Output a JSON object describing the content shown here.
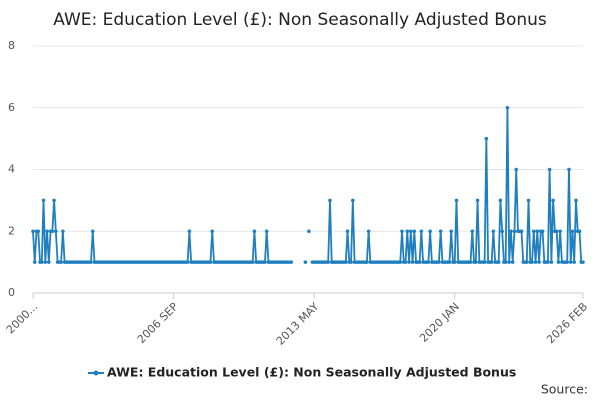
{
  "chart_data": {
    "type": "line",
    "title": "AWE: Education Level (£): Non Seasonally Adjusted Bonus",
    "source": "Source:",
    "legend": "bottom",
    "grid": true,
    "ylim": [
      0,
      8
    ],
    "yticks": [
      0,
      2,
      4,
      6,
      8
    ],
    "categories": [
      "2000...",
      null,
      null,
      null,
      null,
      null,
      null,
      null,
      null,
      null,
      null,
      null,
      null,
      null,
      null,
      null,
      null,
      null,
      null,
      null,
      null,
      null,
      null,
      null,
      null,
      null,
      null,
      null,
      null,
      null,
      null,
      null,
      null,
      null,
      null,
      null,
      null,
      null,
      null,
      null,
      null,
      null,
      null,
      null,
      null,
      null,
      null,
      null,
      null,
      null,
      null,
      null,
      null,
      null,
      null,
      null,
      null,
      null,
      null,
      null,
      null,
      null,
      null,
      null,
      null,
      null,
      null,
      null,
      null,
      null,
      null,
      null,
      null,
      null,
      null,
      null,
      null,
      null,
      null,
      null,
      "2006 SEP",
      null,
      null,
      null,
      null,
      null,
      null,
      null,
      null,
      null,
      null,
      null,
      null,
      null,
      null,
      null,
      null,
      null,
      null,
      null,
      null,
      null,
      null,
      null,
      null,
      null,
      null,
      null,
      null,
      null,
      null,
      null,
      null,
      null,
      null,
      null,
      null,
      null,
      null,
      null,
      null,
      null,
      null,
      null,
      null,
      null,
      null,
      null,
      null,
      null,
      null,
      null,
      null,
      null,
      null,
      null,
      null,
      null,
      null,
      null,
      null,
      null,
      null,
      null,
      null,
      null,
      null,
      null,
      null,
      null,
      null,
      null,
      null,
      null,
      null,
      null,
      null,
      null,
      null,
      null,
      "2013 MAY",
      null,
      null,
      null,
      null,
      null,
      null,
      null,
      null,
      null,
      null,
      null,
      null,
      null,
      null,
      null,
      null,
      null,
      null,
      null,
      null,
      null,
      null,
      null,
      null,
      null,
      null,
      null,
      null,
      null,
      null,
      null,
      null,
      null,
      null,
      null,
      null,
      null,
      null,
      null,
      null,
      null,
      null,
      null,
      null,
      null,
      null,
      null,
      null,
      null,
      null,
      null,
      null,
      null,
      null,
      null,
      null,
      null,
      null,
      null,
      null,
      null,
      null,
      null,
      null,
      null,
      null,
      null,
      null,
      null,
      null,
      null,
      null,
      null,
      null,
      null,
      null,
      null,
      null,
      null,
      "2020 JAN",
      null,
      null,
      null,
      null,
      null,
      null,
      null,
      null,
      null,
      null,
      null,
      null,
      null,
      null,
      null,
      null,
      null,
      null,
      null,
      null,
      null,
      null,
      null,
      null,
      null,
      null,
      null,
      null,
      null,
      null,
      null,
      null,
      null,
      null,
      null,
      null,
      null,
      null,
      null,
      null,
      null,
      null,
      null,
      null,
      null,
      null,
      null,
      null,
      null,
      null,
      null,
      null,
      null,
      null,
      null,
      null,
      null,
      null,
      null,
      null,
      null,
      null,
      null,
      null,
      null,
      null,
      null,
      null,
      null,
      null,
      null,
      null,
      "2026 FEB"
    ],
    "series": [
      {
        "name": "AWE: Education Level (£): Non Seasonally Adjusted Bonus",
        "color": "#1f7fbf",
        "values": [
          2,
          1,
          2,
          2,
          1,
          1,
          3,
          1,
          2,
          1,
          2,
          2,
          3,
          2,
          1,
          1,
          1,
          2,
          1,
          1,
          1,
          1,
          1,
          1,
          1,
          1,
          1,
          1,
          1,
          1,
          1,
          1,
          1,
          1,
          2,
          1,
          1,
          1,
          1,
          1,
          1,
          1,
          1,
          1,
          1,
          1,
          1,
          1,
          1,
          1,
          1,
          1,
          1,
          1,
          1,
          1,
          1,
          1,
          1,
          1,
          1,
          1,
          1,
          1,
          1,
          1,
          1,
          1,
          1,
          1,
          1,
          1,
          1,
          1,
          1,
          1,
          1,
          1,
          1,
          1,
          1,
          1,
          1,
          1,
          1,
          1,
          1,
          1,
          1,
          2,
          1,
          1,
          1,
          1,
          1,
          1,
          1,
          1,
          1,
          1,
          1,
          1,
          2,
          1,
          1,
          1,
          1,
          1,
          1,
          1,
          1,
          1,
          1,
          1,
          1,
          1,
          1,
          1,
          1,
          1,
          1,
          1,
          1,
          1,
          1,
          1,
          2,
          1,
          1,
          1,
          1,
          1,
          1,
          2,
          1,
          1,
          1,
          1,
          1,
          1,
          1,
          1,
          1,
          1,
          1,
          1,
          1,
          1,
          null,
          null,
          null,
          null,
          null,
          null,
          null,
          1,
          null,
          2,
          null,
          1,
          1,
          1,
          1,
          1,
          1,
          1,
          1,
          1,
          1,
          3,
          1,
          1,
          1,
          1,
          1,
          1,
          1,
          1,
          1,
          2,
          1,
          1,
          3,
          1,
          1,
          1,
          1,
          1,
          1,
          1,
          1,
          2,
          1,
          1,
          1,
          1,
          1,
          1,
          1,
          1,
          1,
          1,
          1,
          1,
          1,
          1,
          1,
          1,
          1,
          1,
          2,
          1,
          1,
          2,
          1,
          2,
          1,
          2,
          1,
          1,
          1,
          2,
          1,
          1,
          1,
          1,
          2,
          1,
          1,
          1,
          1,
          1,
          2,
          1,
          1,
          1,
          1,
          1,
          2,
          1,
          1,
          3,
          1,
          1,
          1,
          1,
          1,
          1,
          1,
          1,
          2,
          1,
          1,
          3,
          1,
          1,
          1,
          1,
          5,
          1,
          1,
          1,
          2,
          1,
          1,
          1,
          3,
          2,
          1,
          1,
          6,
          1,
          2,
          1,
          2,
          4,
          2,
          2,
          2,
          1,
          1,
          1,
          3,
          1,
          1,
          2,
          1,
          2,
          1,
          2,
          2,
          1,
          1,
          1,
          4,
          1,
          3,
          2,
          2,
          1,
          2,
          1,
          1,
          1,
          1,
          4,
          1,
          2,
          1,
          3,
          2,
          2,
          1,
          1
        ]
      }
    ]
  }
}
